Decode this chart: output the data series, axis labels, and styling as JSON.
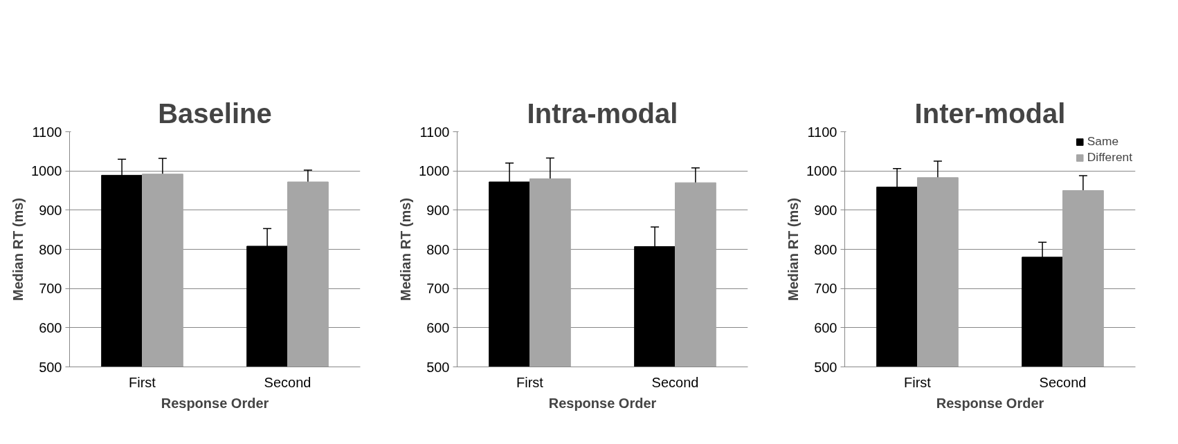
{
  "chart_data": [
    {
      "type": "bar",
      "title": "Baseline",
      "xlabel": "Response Order",
      "ylabel": "Median RT (ms)",
      "categories": [
        "First",
        "Second"
      ],
      "ylim": [
        500,
        1100
      ],
      "yticks": [
        500,
        600,
        700,
        800,
        900,
        1000,
        1100
      ],
      "grid": "y",
      "legend": false,
      "series": [
        {
          "color": "#000000",
          "values": [
            989,
            808
          ],
          "errors": [
            41,
            45
          ]
        },
        {
          "color": "#a6a6a6",
          "values": [
            992,
            972
          ],
          "errors": [
            40,
            30
          ]
        }
      ]
    },
    {
      "type": "bar",
      "title": "Intra-modal",
      "xlabel": "Response Order",
      "ylabel": "Median RT (ms)",
      "categories": [
        "First",
        "Second"
      ],
      "ylim": [
        500,
        1100
      ],
      "yticks": [
        500,
        600,
        700,
        800,
        900,
        1000,
        1100
      ],
      "grid": "y",
      "legend": false,
      "series": [
        {
          "color": "#000000",
          "values": [
            972,
            807
          ],
          "errors": [
            48,
            50
          ]
        },
        {
          "color": "#a6a6a6",
          "values": [
            980,
            970
          ],
          "errors": [
            53,
            38
          ]
        }
      ]
    },
    {
      "type": "bar",
      "title": "Inter-modal",
      "xlabel": "Response Order",
      "ylabel": "Median RT (ms)",
      "categories": [
        "First",
        "Second"
      ],
      "ylim": [
        500,
        1100
      ],
      "yticks": [
        500,
        600,
        700,
        800,
        900,
        1000,
        1100
      ],
      "grid": "y",
      "legend": "top right",
      "series": [
        {
          "name": "Same",
          "color": "#000000",
          "values": [
            959,
            780
          ],
          "errors": [
            47,
            38
          ]
        },
        {
          "name": "Different",
          "color": "#a6a6a6",
          "values": [
            983,
            950
          ],
          "errors": [
            42,
            38
          ]
        }
      ]
    }
  ]
}
